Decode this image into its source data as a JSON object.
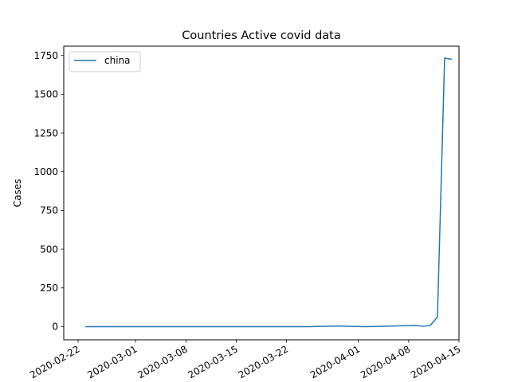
{
  "chart_data": {
    "type": "line",
    "title": "Countries Active covid data",
    "xlabel": "",
    "ylabel": "Cases",
    "x_type": "date",
    "xlim": [
      "2020-02-20",
      "2020-04-15"
    ],
    "ylim": [
      -85,
      1810
    ],
    "x_ticks": [
      "2020-02-22",
      "2020-03-01",
      "2020-03-08",
      "2020-03-15",
      "2020-03-22",
      "2020-04-01",
      "2020-04-08",
      "2020-04-15"
    ],
    "y_ticks": [
      0,
      250,
      500,
      750,
      1000,
      1250,
      1500,
      1750
    ],
    "x_tick_labels": [
      "2020-02-22",
      "2020-03-01",
      "2020-03-08",
      "2020-03-15",
      "2020-03-22",
      "2020-04-01",
      "2020-04-08",
      "2020-04-15"
    ],
    "y_tick_labels": [
      "0",
      "250",
      "500",
      "750",
      "1000",
      "1250",
      "1500",
      "1750"
    ],
    "grid": false,
    "legend_position": "top-left",
    "series": [
      {
        "name": "china",
        "color": "#1f77b4",
        "points": [
          {
            "x": "2020-02-23",
            "y": 0
          },
          {
            "x": "2020-03-25",
            "y": 0
          },
          {
            "x": "2020-03-29",
            "y": 4
          },
          {
            "x": "2020-04-02",
            "y": 0
          },
          {
            "x": "2020-04-09",
            "y": 8
          },
          {
            "x": "2020-04-10",
            "y": 2
          },
          {
            "x": "2020-04-11",
            "y": 8
          },
          {
            "x": "2020-04-12",
            "y": 62
          },
          {
            "x": "2020-04-13",
            "y": 1733
          },
          {
            "x": "2020-04-14",
            "y": 1725
          }
        ]
      }
    ]
  }
}
